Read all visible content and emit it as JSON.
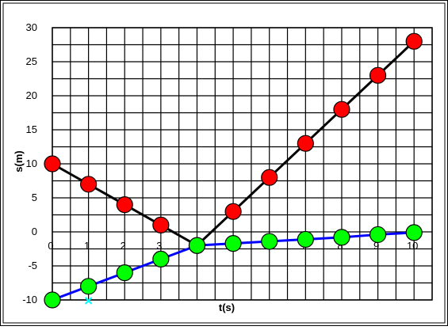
{
  "chart_data": {
    "type": "line",
    "xlabel": "t(s)",
    "ylabel": "s(m)",
    "xlim": [
      0,
      10.5
    ],
    "ylim": [
      -10,
      30
    ],
    "xticks": [
      0,
      1,
      2,
      3,
      4,
      5,
      6,
      7,
      8,
      9,
      10
    ],
    "yticks": [
      -10,
      -5,
      0,
      5,
      10,
      15,
      20,
      25,
      30
    ],
    "grid": true,
    "legend": "none",
    "series": [
      {
        "color": "#000000",
        "marker_color": "#ff0000",
        "x": [
          0,
          1,
          2,
          3,
          4,
          5,
          6,
          7,
          8,
          9,
          10
        ],
        "y": [
          10,
          7,
          4,
          1,
          -2,
          3,
          8,
          13,
          18,
          23,
          28
        ]
      },
      {
        "color": "#0000ff",
        "marker_color": "#00ff00",
        "x": [
          0,
          1,
          2,
          3,
          4,
          5,
          6,
          7,
          8,
          9,
          10
        ],
        "y": [
          -10,
          -8,
          -6,
          -4,
          -2,
          -1.7,
          -1.4,
          -1.1,
          -0.8,
          -0.4,
          -0.1
        ]
      }
    ],
    "annotations": [
      {
        "type": "cross-marker",
        "color": "#00ffff",
        "x": 1,
        "y": -10
      }
    ]
  }
}
